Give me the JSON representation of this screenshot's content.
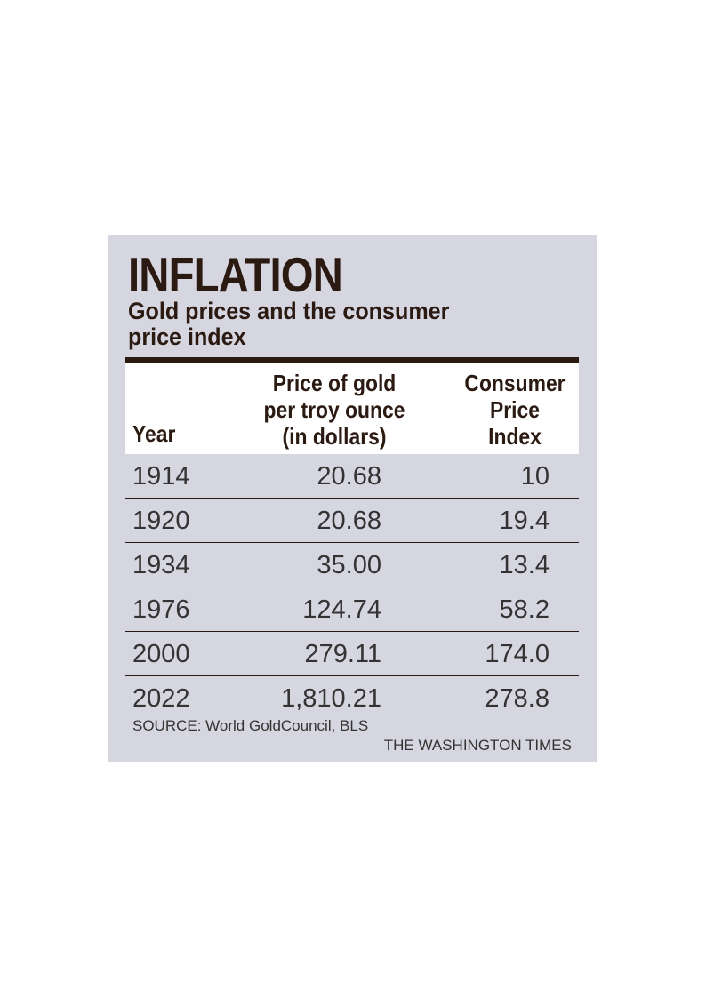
{
  "title": "INFLATION",
  "subtitle": "Gold prices and the consumer price index",
  "chart_data": {
    "type": "table",
    "columns": [
      "Year",
      "Price of gold\nper troy ounce\n(in dollars)",
      "Consumer\nPrice\nIndex"
    ],
    "rows": [
      {
        "year": "1914",
        "gold": "20.68",
        "cpi": "10"
      },
      {
        "year": "1920",
        "gold": "20.68",
        "cpi": "19.4"
      },
      {
        "year": "1934",
        "gold": "35.00",
        "cpi": "13.4"
      },
      {
        "year": "1976",
        "gold": "124.74",
        "cpi": "58.2"
      },
      {
        "year": "2000",
        "gold": "279.11",
        "cpi": "174.0"
      },
      {
        "year": "2022",
        "gold": "1,810.21",
        "cpi": "278.8"
      }
    ]
  },
  "source": "SOURCE: World GoldCouncil, BLS",
  "credit": "THE WASHINGTON TIMES",
  "colors": {
    "background": "#d6d6e0",
    "heading": "#2b1a12",
    "body_text": "#333333"
  }
}
